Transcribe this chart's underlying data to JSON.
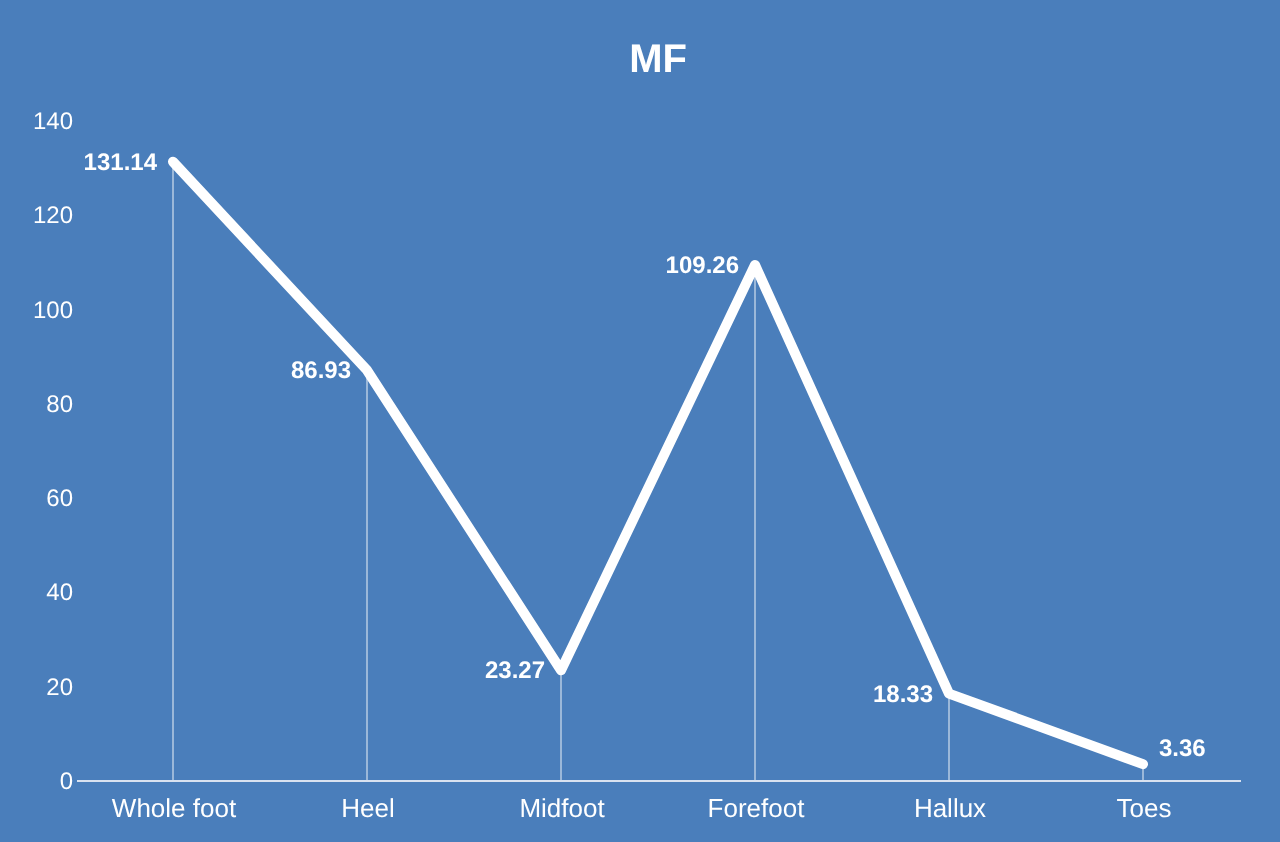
{
  "chart_data": {
    "type": "line",
    "title": "MF",
    "categories": [
      "Whole foot",
      "Heel",
      "Midfoot",
      "Forefoot",
      "Hallux",
      "Toes"
    ],
    "series": [
      {
        "color": "#ffffff",
        "values": [
          131.14,
          86.93,
          23.27,
          109.26,
          18.33,
          3.36
        ]
      }
    ],
    "ylim": [
      0,
      140
    ],
    "yticks": [
      0,
      20,
      40,
      60,
      80,
      100,
      120,
      140
    ],
    "marker": "none",
    "data_labels": true
  }
}
